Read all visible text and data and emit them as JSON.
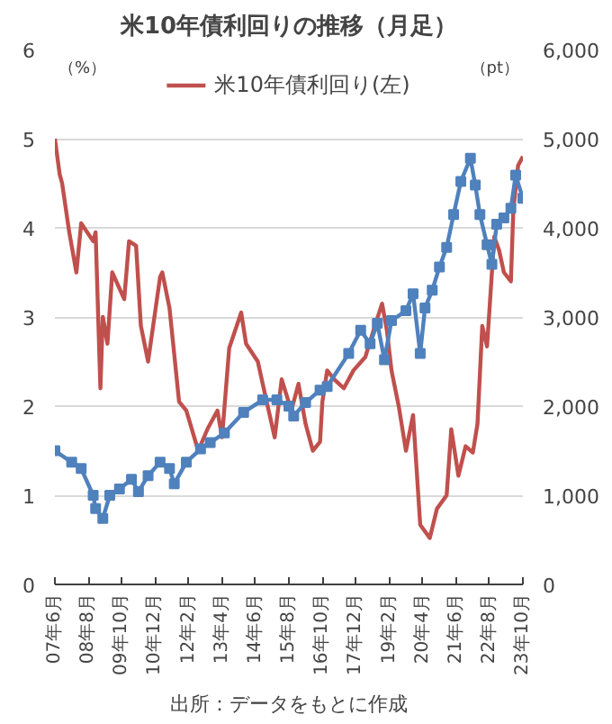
{
  "chart_data": {
    "type": "line",
    "title": "米10年債利回りの推移（月足）",
    "ylabel": "（%）",
    "y2label": "（pt）",
    "annotations": [
      "出所：データをもとに作成"
    ],
    "xlim": [
      "2007-06",
      "2023-10"
    ],
    "xticks": [
      {
        "value": "2007-06",
        "label": "07年6月"
      },
      {
        "value": "2008-08",
        "label": "08年8月"
      },
      {
        "value": "2009-10",
        "label": "09年10月"
      },
      {
        "value": "2010-12",
        "label": "10年12月"
      },
      {
        "value": "2012-02",
        "label": "12年2月"
      },
      {
        "value": "2013-04",
        "label": "13年4月"
      },
      {
        "value": "2014-06",
        "label": "14年6月"
      },
      {
        "value": "2015-08",
        "label": "15年8月"
      },
      {
        "value": "2016-10",
        "label": "16年10月"
      },
      {
        "value": "2017-12",
        "label": "17年12月"
      },
      {
        "value": "2019-02",
        "label": "19年2月"
      },
      {
        "value": "2020-04",
        "label": "20年4月"
      },
      {
        "value": "2021-06",
        "label": "21年6月"
      },
      {
        "value": "2022-08",
        "label": "22年8月"
      },
      {
        "value": "2023-10",
        "label": "23年10月"
      }
    ],
    "ylim": [
      0,
      6
    ],
    "yticks": [
      0,
      1,
      2,
      3,
      4,
      5,
      6
    ],
    "y2lim": [
      0,
      6000
    ],
    "y2ticks": [
      0,
      {
        "value": 1000,
        "label": "1,000"
      },
      {
        "value": 2000,
        "label": "2,000"
      },
      {
        "value": 3000,
        "label": "3,000"
      },
      {
        "value": 4000,
        "label": "4,000"
      },
      {
        "value": 5000,
        "label": "5,000"
      },
      {
        "value": 6000,
        "label": "6,000"
      }
    ],
    "grid": "y",
    "legend": "top",
    "series": [
      {
        "name": "米10年債利回り(左)",
        "color": "#c0504d",
        "marker": "none",
        "x": [
          "2007-06",
          "2007-08",
          "2007-09",
          "2007-12",
          "2008-03",
          "2008-05",
          "2008-10",
          "2008-11",
          "2009-01",
          "2009-02",
          "2009-04",
          "2009-06",
          "2009-11",
          "2010-01",
          "2010-04",
          "2010-06",
          "2010-09",
          "2011-02",
          "2011-03",
          "2011-06",
          "2011-10",
          "2012-01",
          "2012-06",
          "2012-10",
          "2013-02",
          "2013-04",
          "2013-07",
          "2013-12",
          "2014-02",
          "2014-07",
          "2014-09",
          "2015-02",
          "2015-05",
          "2015-09",
          "2015-12",
          "2016-03",
          "2016-06",
          "2016-09",
          "2016-10",
          "2016-12",
          "2017-03",
          "2017-07",
          "2017-11",
          "2018-04",
          "2018-08",
          "2018-11",
          "2019-01",
          "2019-03",
          "2019-06",
          "2019-09",
          "2019-12",
          "2020-03",
          "2020-07",
          "2020-10",
          "2021-02",
          "2021-04",
          "2021-07",
          "2021-10",
          "2022-01",
          "2022-03",
          "2022-05",
          "2022-07",
          "2022-10",
          "2022-12",
          "2023-02",
          "2023-05",
          "2023-06",
          "2023-08",
          "2023-10"
        ],
        "values": [
          5.0,
          4.6,
          4.5,
          3.95,
          3.5,
          4.05,
          3.85,
          3.95,
          2.2,
          3.0,
          2.7,
          3.5,
          3.2,
          3.85,
          3.8,
          2.9,
          2.5,
          3.45,
          3.5,
          3.1,
          2.05,
          1.95,
          1.5,
          1.75,
          1.95,
          1.65,
          2.65,
          3.05,
          2.7,
          2.5,
          2.25,
          1.65,
          2.3,
          1.95,
          2.25,
          1.8,
          1.5,
          1.6,
          2.05,
          2.4,
          2.3,
          2.2,
          2.4,
          2.55,
          2.9,
          3.15,
          2.85,
          2.4,
          2.0,
          1.5,
          1.9,
          0.67,
          0.52,
          0.85,
          1.0,
          1.74,
          1.22,
          1.55,
          1.48,
          1.8,
          2.9,
          2.67,
          3.9,
          3.75,
          3.5,
          3.4,
          4.2,
          4.7,
          4.8
        ]
      },
      {
        "color": "#4f81bd",
        "axis": "y2",
        "marker": "square",
        "x": [
          "2007-06",
          "2008-01",
          "2008-05",
          "2008-10",
          "2008-11",
          "2009-02",
          "2009-05",
          "2009-09",
          "2010-02",
          "2010-05",
          "2010-09",
          "2011-02",
          "2011-06",
          "2011-08",
          "2012-01",
          "2012-07",
          "2012-11",
          "2013-05",
          "2014-01",
          "2014-09",
          "2015-03",
          "2015-08",
          "2015-10",
          "2016-03",
          "2016-09",
          "2016-12",
          "2017-09",
          "2018-02",
          "2018-06",
          "2018-09",
          "2018-12",
          "2019-03",
          "2019-09",
          "2019-12",
          "2020-03",
          "2020-05",
          "2020-08",
          "2020-11",
          "2021-02",
          "2021-05",
          "2021-08",
          "2021-12",
          "2022-02",
          "2022-04",
          "2022-07",
          "2022-09",
          "2022-11",
          "2023-02",
          "2023-05",
          "2023-07",
          "2023-10"
        ],
        "values": [
          1500,
          1370,
          1300,
          1000,
          850,
          740,
          1000,
          1070,
          1180,
          1040,
          1220,
          1370,
          1300,
          1130,
          1370,
          1520,
          1590,
          1700,
          1930,
          2070,
          2070,
          2000,
          1890,
          2040,
          2180,
          2220,
          2590,
          2850,
          2700,
          2930,
          2520,
          2960,
          3070,
          3260,
          2590,
          3100,
          3300,
          3560,
          3780,
          4150,
          4520,
          4780,
          4480,
          4150,
          3810,
          3590,
          4040,
          4110,
          4220,
          4590,
          4330
        ]
      }
    ]
  }
}
